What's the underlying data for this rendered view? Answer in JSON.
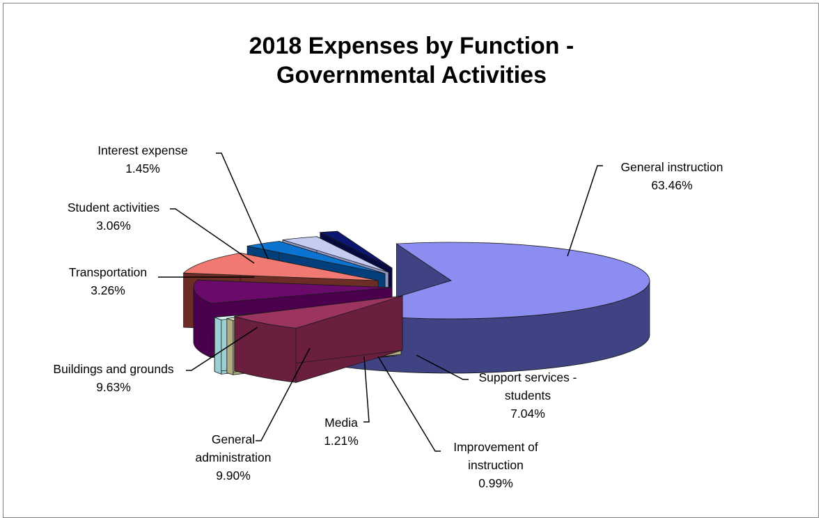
{
  "chart_data": {
    "type": "pie",
    "style": "exploded 3D pie",
    "title_lines": [
      "2018 Expenses by Function -",
      "Governmental Activities"
    ],
    "legend": "none",
    "slices": [
      {
        "label_lines": [
          "General instruction"
        ],
        "value": 63.46,
        "value_text": "63.46%",
        "color": "#8b8ef0",
        "side_color": "#3f4283"
      },
      {
        "label_lines": [
          "Support services -",
          "students"
        ],
        "value": 7.04,
        "value_text": "7.04%",
        "color": "#9b3460",
        "side_color": "#6a1f3f"
      },
      {
        "label_lines": [
          "Improvement of",
          "instruction"
        ],
        "value": 0.99,
        "value_text": "0.99%",
        "color": "#efedc4",
        "side_color": "#b0ad82"
      },
      {
        "label_lines": [
          "Media"
        ],
        "value": 1.21,
        "value_text": "1.21%",
        "color": "#d6f2f4",
        "side_color": "#9ccfd3"
      },
      {
        "label_lines": [
          "General",
          "administration"
        ],
        "value": 9.9,
        "value_text": "9.90%",
        "color": "#6a0a6a",
        "side_color": "#4a004c"
      },
      {
        "label_lines": [
          "Buildings and grounds"
        ],
        "value": 9.63,
        "value_text": "9.63%",
        "color": "#f07a72",
        "side_color": "#6b2d25"
      },
      {
        "label_lines": [
          "Transportation"
        ],
        "value": 3.26,
        "value_text": "3.26%",
        "color": "#0a74d0",
        "side_color": "#03407b"
      },
      {
        "label_lines": [
          "Student activities"
        ],
        "value": 3.06,
        "value_text": "3.06%",
        "color": "#c5ccf2",
        "side_color": "#8f96c4"
      },
      {
        "label_lines": [
          "Interest expense"
        ],
        "value": 1.45,
        "value_text": "1.45%",
        "color": "#0b1572",
        "side_color": "#05093f"
      }
    ]
  }
}
